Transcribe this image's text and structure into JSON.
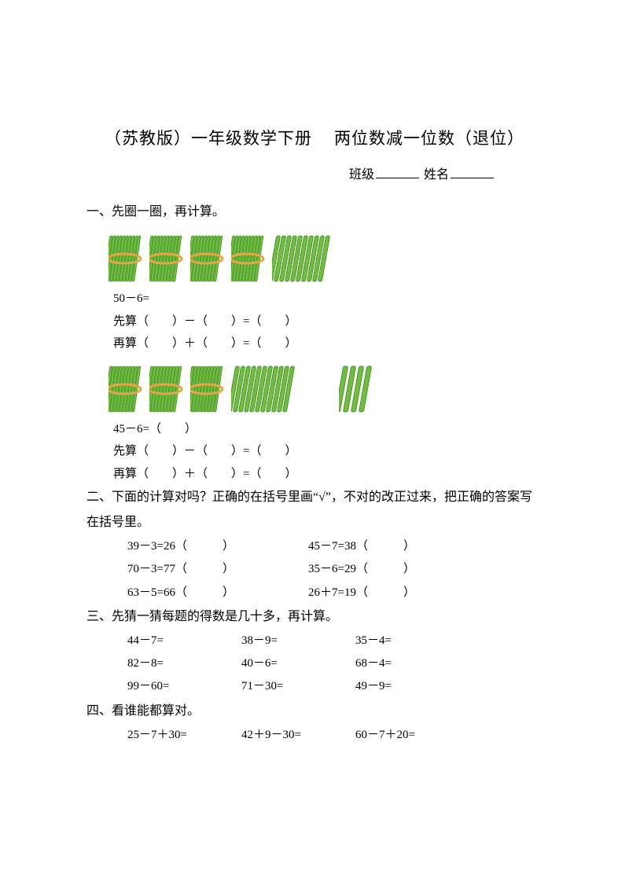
{
  "title_left": "（苏教版）一年级数学下册",
  "title_right": "两位数减一位数（退位）",
  "class_label": "班级",
  "name_label": "姓名",
  "s1_heading": "一、先圈一圈，再计算。",
  "p1_expr": "50－6=",
  "p1_line1": "先算（　　）－（　　）=（　　）",
  "p1_line2": "再算（　　）＋（　　）=（　　）",
  "p2_expr": "45－6=（　　）",
  "p2_line1": "先算（　　）－（　　）=（　　）",
  "p2_line2": "再算（　　）＋（　　）=（　　）",
  "s2_heading": "二、下面的计算对吗？正确的在括号里画“√”，不对的改正过来，把正确的答案写在括号里。",
  "s2_r1c1": "39－3=26（　　　）",
  "s2_r1c2": "45－7=38（　　　）",
  "s2_r2c1": "70－3=77（　　　）",
  "s2_r2c2": "35－6=29（　　　）",
  "s2_r3c1": "63－5=66（　　　）",
  "s2_r3c2": "26＋7=19（　　　）",
  "s3_heading": "三、先猜一猜每题的得数是几十多，再计算。",
  "s3_r1c1": "44－7=",
  "s3_r1c2": "38－9=",
  "s3_r1c3": "35－4=",
  "s3_r2c1": "82－8=",
  "s3_r2c2": "40－6=",
  "s3_r2c3": "68－4=",
  "s3_r3c1": "99－60=",
  "s3_r3c2": "71－30=",
  "s3_r3c3": "49－9=",
  "s4_heading": "四、看谁能都算对。",
  "s4_r1c1": "25－7＋30=",
  "s4_r1c2": "42＋9－30=",
  "s4_r1c3": "60－7＋20=",
  "colors": {
    "stick_light": "#6fbf3a",
    "stick_dark": "#2e7d1a",
    "band": "#e6a642",
    "band_fill": "#f7e7c8"
  },
  "sticks1": {
    "bundles": 4,
    "loose_after": 10
  },
  "sticks2": {
    "bundles": 3,
    "loose_after": 11,
    "loose_far": 4
  }
}
